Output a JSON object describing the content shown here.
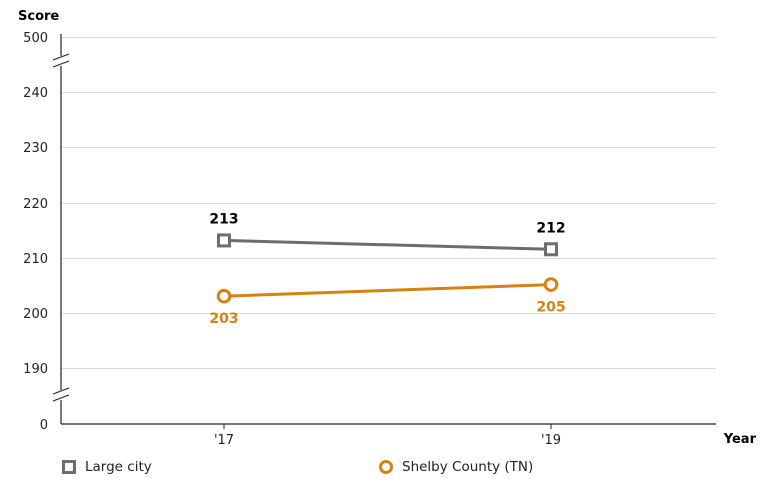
{
  "chart_data": {
    "type": "line",
    "ylabel": "Score",
    "xlabel": "Year",
    "categories": [
      "'17",
      "'19"
    ],
    "y_ticks": [
      "500",
      "240",
      "230",
      "220",
      "210",
      "200",
      "190",
      "0"
    ],
    "axis_breaks": [
      "between 500 and 240",
      "between 190 and 0"
    ],
    "ylim_main": [
      190,
      240
    ],
    "grid": true,
    "legend_position": "bottom",
    "series": [
      {
        "name": "Large city",
        "marker": "square",
        "color": "#6d6d6d",
        "label_color": "#000000",
        "values": [
          213,
          212
        ],
        "labels": [
          "213",
          "212"
        ],
        "plot_values": [
          213.2,
          211.6
        ],
        "label_placement": "above"
      },
      {
        "name": "Shelby County (TN)",
        "marker": "circle",
        "color": "#d6830e",
        "label_color": "#d6830e",
        "values": [
          203,
          205
        ],
        "labels": [
          "203",
          "205"
        ],
        "plot_values": [
          203.1,
          205.2
        ],
        "label_placement": "below"
      }
    ]
  }
}
